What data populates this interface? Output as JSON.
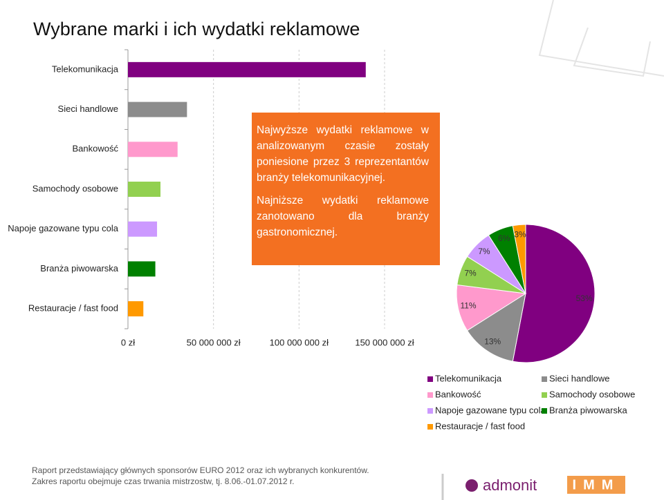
{
  "title": "Wybrane marki i ich wydatki reklamowe",
  "chart_data": [
    {
      "type": "bar",
      "orientation": "horizontal",
      "categories": [
        "Telekomunikacja",
        "Sieci handlowe",
        "Bankowość",
        "Samochody osobowe",
        "Napoje gazowane typu cola",
        "Branża piwowarska",
        "Restauracje / fast food"
      ],
      "values": [
        139000000,
        34500000,
        29000000,
        19000000,
        17000000,
        16000000,
        9000000
      ],
      "colors": [
        "#800080",
        "#8c8c8c",
        "#ff99cc",
        "#92d050",
        "#cc99ff",
        "#008000",
        "#ff9900"
      ],
      "xlim": [
        0,
        150000000
      ],
      "xticks": [
        {
          "value": 0,
          "label": "0 zł"
        },
        {
          "value": 50000000,
          "label": "50 000 000 zł"
        },
        {
          "value": 100000000,
          "label": "100 000 000 zł"
        },
        {
          "value": 150000000,
          "label": "150 000 000 zł"
        }
      ],
      "grid": true
    },
    {
      "type": "pie",
      "categories": [
        "Telekomunikacja",
        "Sieci handlowe",
        "Bankowość",
        "Samochody osobowe",
        "Napoje gazowane typu cola",
        "Branża piwowarska",
        "Restauracje / fast food"
      ],
      "values": [
        53,
        13,
        11,
        7,
        7,
        6,
        3
      ],
      "value_labels": [
        "53%",
        "13%",
        "11%",
        "7%",
        "7%",
        "6%",
        "3%"
      ],
      "colors": [
        "#800080",
        "#8c8c8c",
        "#ff99cc",
        "#92d050",
        "#cc99ff",
        "#008000",
        "#ff9900"
      ],
      "legend": "bottom"
    }
  ],
  "callout": [
    "Najwyższe wydatki reklamowe w analizowanym czasie zostały poniesione przez 3 reprezentantów branży telekomunikacyjnej.",
    "Najniższe wydatki reklamowe zanotowano dla branży gastronomicznej."
  ],
  "footer": [
    "Raport przedstawiający głównych sponsorów EURO 2012 oraz ich wybranych konkurentów.",
    "Zakres raportu obejmuje czas trwania mistrzostw, tj. 8.06.-01.07.2012 r."
  ],
  "logos": [
    "admonit",
    "IMM"
  ]
}
